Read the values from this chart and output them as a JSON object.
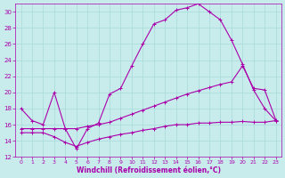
{
  "xlabel": "Windchill (Refroidissement éolien,°C)",
  "bg_color": "#c8ecec",
  "grid_color": "#a8d8d8",
  "line_color": "#aa00aa",
  "xlim": [
    -0.5,
    23.5
  ],
  "ylim": [
    12,
    31
  ],
  "yticks": [
    12,
    14,
    16,
    18,
    20,
    22,
    24,
    26,
    28,
    30
  ],
  "xticks": [
    0,
    1,
    2,
    3,
    4,
    5,
    6,
    7,
    8,
    9,
    10,
    11,
    12,
    13,
    14,
    15,
    16,
    17,
    18,
    19,
    20,
    21,
    22,
    23
  ],
  "line1_x": [
    0,
    1,
    2,
    3,
    4,
    5,
    6,
    7,
    8,
    9,
    10,
    11,
    12,
    13,
    14,
    15,
    16,
    17,
    18,
    19,
    20,
    21,
    22,
    23
  ],
  "line1_y": [
    18.0,
    16.5,
    16.0,
    20.0,
    15.5,
    13.0,
    15.5,
    16.2,
    19.8,
    20.5,
    23.3,
    26.0,
    28.5,
    29.0,
    30.2,
    30.5,
    31.0,
    30.0,
    29.0,
    26.5,
    23.5,
    20.3,
    18.0,
    16.5
  ],
  "line2_x": [
    0,
    1,
    2,
    3,
    4,
    5,
    6,
    7,
    8,
    9,
    10,
    11,
    12,
    13,
    14,
    15,
    16,
    17,
    18,
    19,
    20,
    21,
    22,
    23
  ],
  "line2_y": [
    15.5,
    15.5,
    15.5,
    15.5,
    15.5,
    15.5,
    15.8,
    16.0,
    16.3,
    16.8,
    17.3,
    17.8,
    18.3,
    18.8,
    19.3,
    19.8,
    20.2,
    20.6,
    21.0,
    21.3,
    23.3,
    20.5,
    20.3,
    16.6
  ],
  "line3_x": [
    0,
    1,
    2,
    3,
    4,
    5,
    6,
    7,
    8,
    9,
    10,
    11,
    12,
    13,
    14,
    15,
    16,
    17,
    18,
    19,
    20,
    21,
    22,
    23
  ],
  "line3_y": [
    15.0,
    15.0,
    15.0,
    14.5,
    13.8,
    13.3,
    13.8,
    14.2,
    14.5,
    14.8,
    15.0,
    15.3,
    15.5,
    15.8,
    16.0,
    16.0,
    16.2,
    16.2,
    16.3,
    16.3,
    16.4,
    16.3,
    16.3,
    16.5
  ]
}
